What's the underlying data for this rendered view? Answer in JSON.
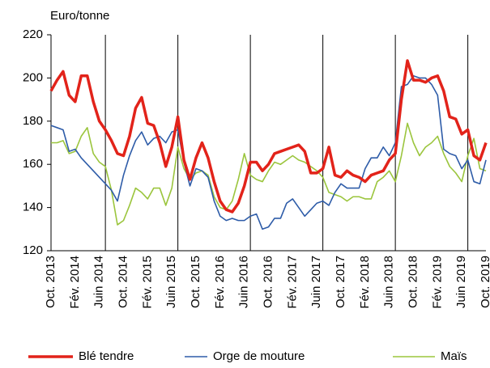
{
  "chart_data": {
    "type": "line",
    "y_label": "Euro/tonne",
    "categories": [
      "Oct. 2013",
      null,
      null,
      null,
      "Fév. 2014",
      null,
      null,
      null,
      "Juin 2014",
      null,
      null,
      null,
      "Oct. 2014",
      null,
      null,
      null,
      "Fév. 2015",
      null,
      null,
      null,
      "Juin 2015",
      null,
      null,
      null,
      "Oct. 2015",
      null,
      null,
      null,
      "Fév. 2016",
      null,
      null,
      null,
      "Juin 2016",
      null,
      null,
      null,
      "Oct. 2016",
      null,
      null,
      null,
      "Fév. 2017",
      null,
      null,
      null,
      "Juin 2017",
      null,
      null,
      null,
      "Oct. 2017",
      null,
      null,
      null,
      "Fév. 2018",
      null,
      null,
      null,
      "Juin 2018",
      null,
      null,
      null,
      "Oct. 2018",
      null,
      null,
      null,
      "Fév. 2019",
      null,
      null,
      null,
      "Juin 2019",
      null,
      null,
      null,
      "Oct. 2019"
    ],
    "series": [
      {
        "name": "Blé tendre",
        "color": "#e2231a",
        "width": 3.5,
        "values": [
          194,
          199,
          203,
          192,
          189,
          201,
          201,
          189,
          180,
          176,
          171,
          165,
          164,
          173,
          186,
          191,
          179,
          178,
          170,
          159,
          168,
          182,
          162,
          153,
          163,
          170,
          163,
          152,
          143,
          139,
          138,
          142,
          150,
          161,
          161,
          157,
          160,
          165,
          166,
          167,
          168,
          169,
          166,
          156,
          156,
          158,
          168,
          155,
          154,
          157,
          155,
          154,
          152,
          155,
          156,
          157,
          162,
          165,
          190,
          208,
          199,
          199,
          198,
          200,
          201,
          194,
          182,
          181,
          174,
          176,
          164,
          162,
          170
        ]
      },
      {
        "name": "Orge de mouture",
        "color": "#2e5ca8",
        "width": 1.6,
        "values": [
          178,
          177,
          176,
          166,
          167,
          163,
          160,
          157,
          154,
          151,
          148,
          143,
          155,
          164,
          171,
          175,
          169,
          172,
          173,
          170,
          175,
          176,
          161,
          150,
          158,
          157,
          154,
          143,
          136,
          134,
          135,
          134,
          134,
          136,
          137,
          130,
          131,
          135,
          135,
          142,
          144,
          140,
          136,
          139,
          142,
          143,
          141,
          147,
          151,
          149,
          149,
          149,
          158,
          163,
          163,
          168,
          164,
          170,
          196,
          197,
          201,
          200,
          200,
          197,
          192,
          167,
          165,
          164,
          158,
          162,
          152,
          151,
          162
        ]
      },
      {
        "name": "Maïs",
        "color": "#9bc53d",
        "width": 1.6,
        "values": [
          170,
          170,
          171,
          165,
          166,
          173,
          177,
          165,
          161,
          159,
          148,
          132,
          134,
          141,
          149,
          147,
          144,
          149,
          149,
          141,
          149,
          168,
          158,
          153,
          156,
          157,
          155,
          145,
          140,
          139,
          143,
          153,
          165,
          155,
          153,
          152,
          157,
          161,
          160,
          162,
          164,
          162,
          161,
          159,
          157,
          154,
          147,
          146,
          145,
          143,
          145,
          145,
          144,
          144,
          152,
          154,
          157,
          152,
          164,
          179,
          170,
          164,
          168,
          170,
          173,
          165,
          159,
          156,
          152,
          164,
          172,
          158,
          157
        ]
      }
    ],
    "ylim": [
      120,
      220
    ],
    "yticks": [
      120,
      140,
      160,
      180,
      200,
      220
    ]
  }
}
